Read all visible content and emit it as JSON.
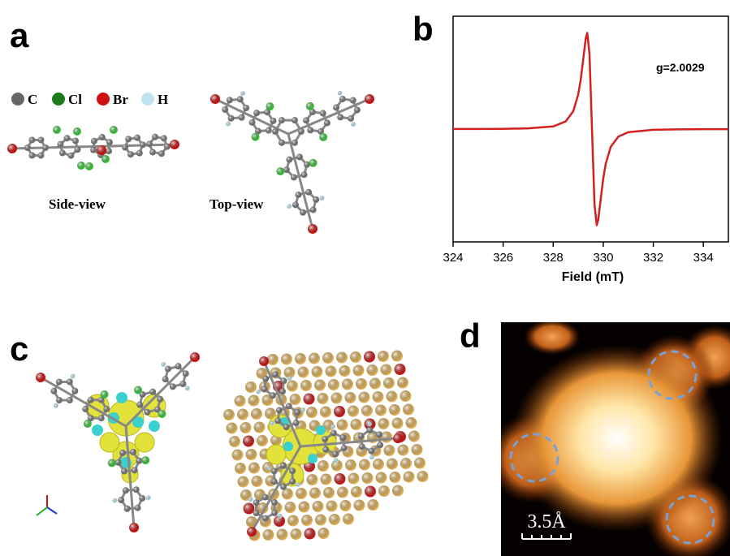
{
  "panels": {
    "a": {
      "label": "a",
      "legend": [
        "C",
        "Cl",
        "Br",
        "H"
      ],
      "captions": [
        "Side-view",
        "Top-view"
      ]
    },
    "b": {
      "label": "b"
    },
    "c": {
      "label": "c"
    },
    "d": {
      "label": "d",
      "scale_bar": "3.5Å"
    }
  },
  "chart_data": {
    "type": "line",
    "annotation": "g=2.0029",
    "x_label": "Field (mT)",
    "x": [
      324,
      325,
      326,
      327,
      328,
      328.5,
      328.8,
      329.0,
      329.1,
      329.2,
      329.3,
      329.36,
      329.45,
      329.55,
      329.65,
      329.74,
      329.8,
      329.9,
      330.0,
      330.1,
      330.3,
      330.6,
      331,
      332,
      333,
      334,
      335
    ],
    "series": [
      {
        "color": "#d42020",
        "values": [
          0.001,
          0.001,
          0.002,
          0.006,
          0.023,
          0.068,
          0.157,
          0.307,
          0.438,
          0.617,
          0.803,
          0.852,
          0.667,
          0,
          -0.667,
          -0.852,
          -0.803,
          -0.617,
          -0.438,
          -0.307,
          -0.157,
          -0.068,
          -0.028,
          -0.006,
          -0.003,
          -0.001,
          -0.001
        ]
      }
    ],
    "xlim": [
      324,
      335
    ],
    "ylim": [
      -1,
      1
    ],
    "xticks": [
      324,
      326,
      328,
      330,
      332,
      334
    ]
  }
}
